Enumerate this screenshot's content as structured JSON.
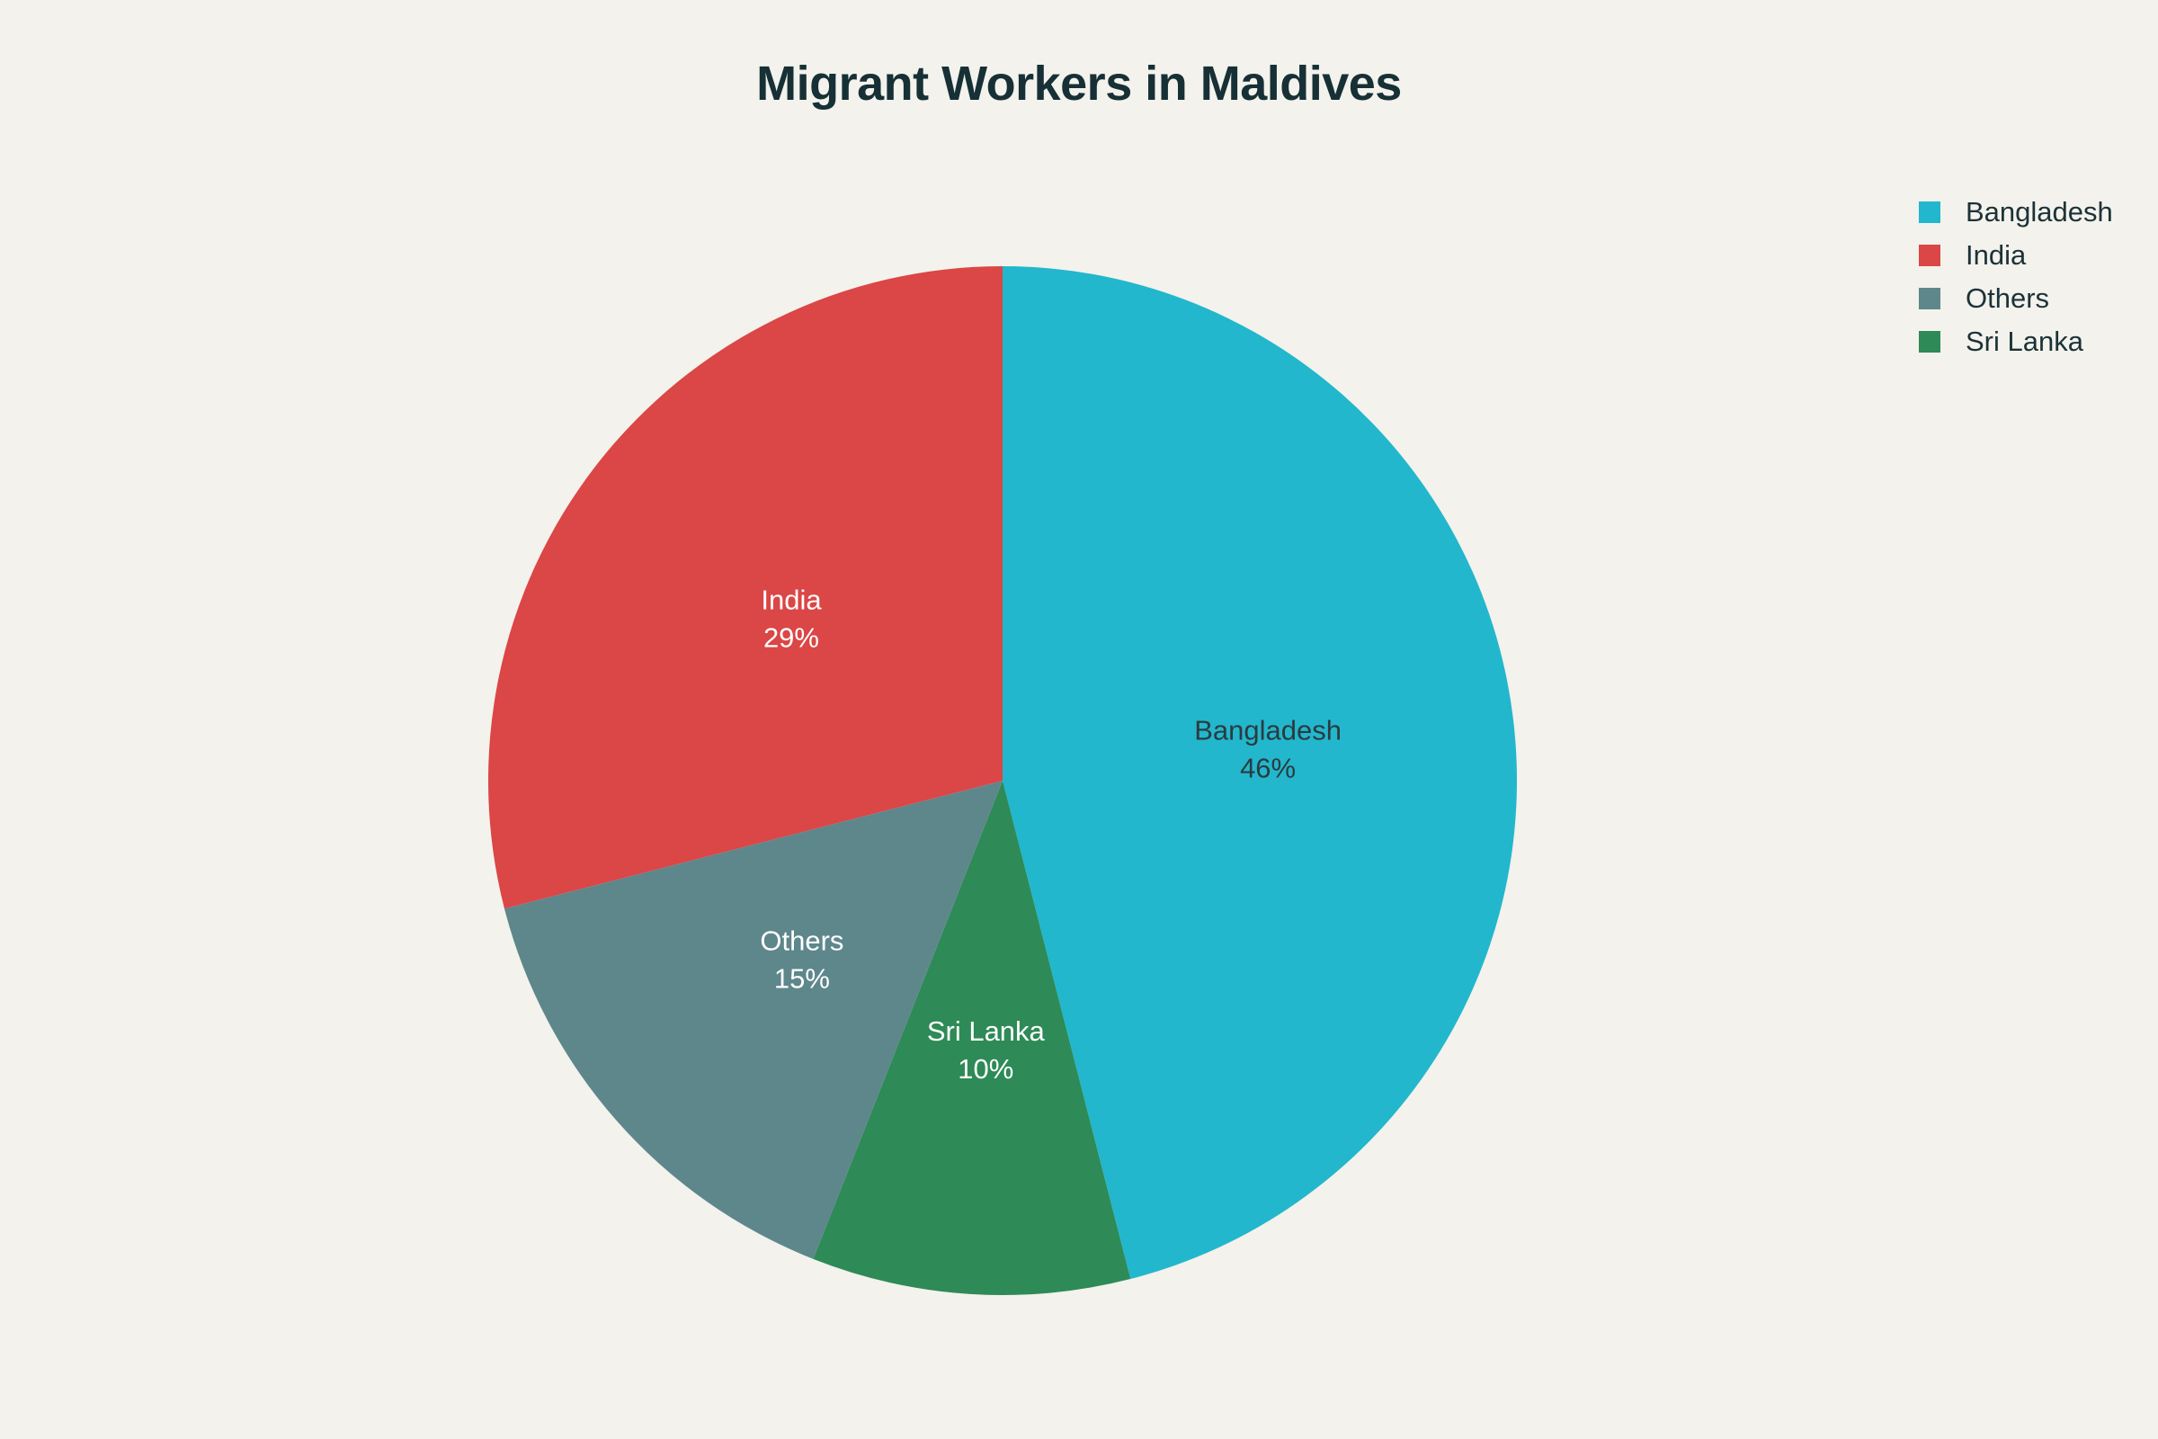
{
  "title": "Migrant Workers in Maldives",
  "chart_data": {
    "type": "pie",
    "title": "Migrant Workers in Maldives",
    "slices": [
      {
        "label": "Bangladesh",
        "value": 46,
        "percent_text": "46%",
        "color": "#22b7cc",
        "text_color": "#2b3b40"
      },
      {
        "label": "Sri Lanka",
        "value": 10,
        "percent_text": "10%",
        "color": "#2e8a57",
        "text_color": "#ffffff"
      },
      {
        "label": "Others",
        "value": 15,
        "percent_text": "15%",
        "color": "#5e878c",
        "text_color": "#ffffff"
      },
      {
        "label": "India",
        "value": 29,
        "percent_text": "29%",
        "color": "#db4646",
        "text_color": "#ffffff"
      }
    ],
    "legend": {
      "position": "top-right",
      "entries": [
        {
          "label": "Bangladesh",
          "color": "#22b7cc"
        },
        {
          "label": "India",
          "color": "#db4646"
        },
        {
          "label": "Others",
          "color": "#5e878c"
        },
        {
          "label": "Sri Lanka",
          "color": "#2e8a57"
        }
      ]
    },
    "direction": "clockwise",
    "start_angle": "12 o'clock"
  }
}
